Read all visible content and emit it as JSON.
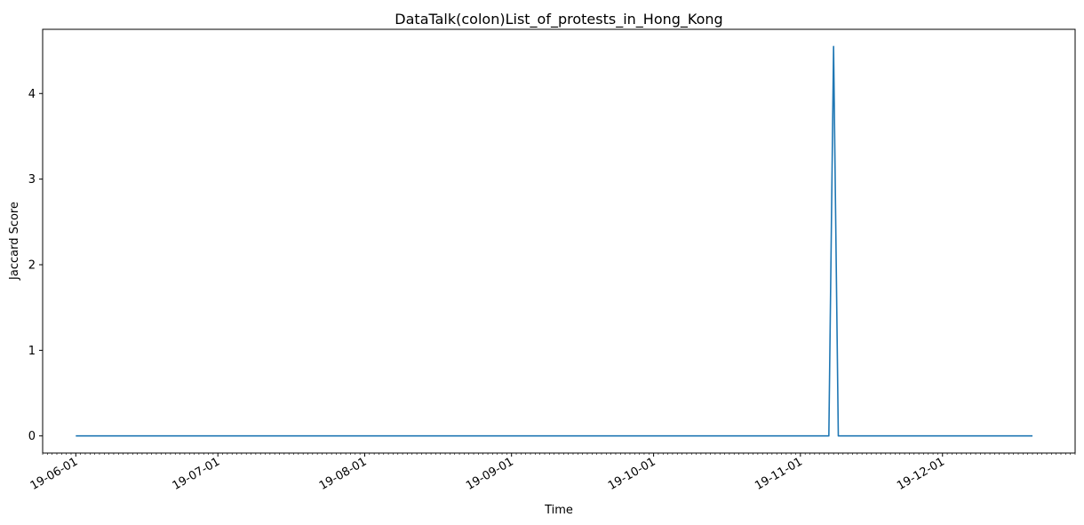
{
  "chart_data": {
    "type": "line",
    "title": "DataTalk(colon)List_of_protests_in_Hong_Kong",
    "xlabel": "Time",
    "ylabel": "Jaccard Score",
    "xlim": [
      "2019-05-25",
      "2019-12-29"
    ],
    "ylim": [
      -0.2,
      4.75
    ],
    "grid": false,
    "legend": "none",
    "line_color": "#1f77b4",
    "x_ticks": [
      {
        "date": "2019-06-01",
        "label": "19-06-01"
      },
      {
        "date": "2019-07-01",
        "label": "19-07-01"
      },
      {
        "date": "2019-08-01",
        "label": "19-08-01"
      },
      {
        "date": "2019-09-01",
        "label": "19-09-01"
      },
      {
        "date": "2019-10-01",
        "label": "19-10-01"
      },
      {
        "date": "2019-11-01",
        "label": "19-11-01"
      },
      {
        "date": "2019-12-01",
        "label": "19-12-01"
      }
    ],
    "y_ticks": [
      {
        "value": 0,
        "label": "0"
      },
      {
        "value": 1,
        "label": "1"
      },
      {
        "value": 2,
        "label": "2"
      },
      {
        "value": 3,
        "label": "3"
      },
      {
        "value": 4,
        "label": "4"
      }
    ],
    "series": [
      {
        "x": [
          "2019-06-01",
          "2019-11-07",
          "2019-11-08",
          "2019-11-09",
          "2019-12-20"
        ],
        "y": [
          0,
          0,
          4.55,
          0,
          0
        ]
      }
    ]
  }
}
